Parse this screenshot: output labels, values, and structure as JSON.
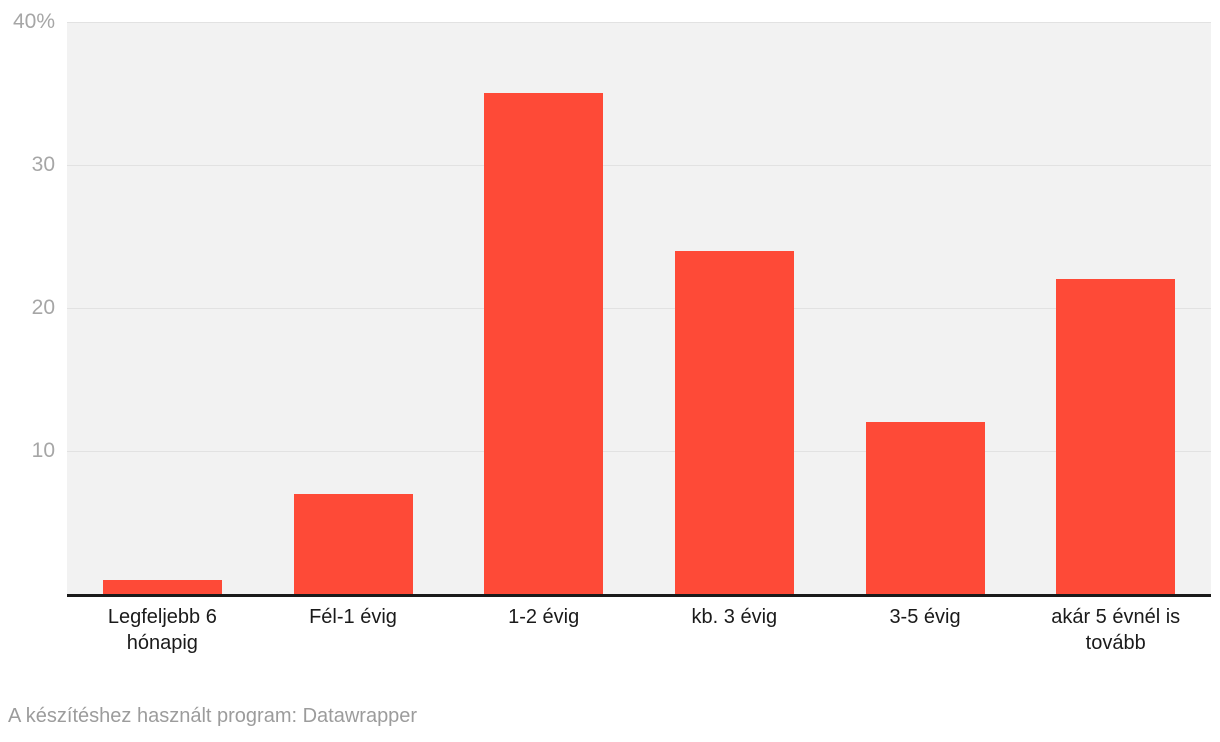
{
  "chart_data": {
    "type": "bar",
    "categories": [
      "Legfeljebb 6 hónapig",
      "Fél-1 évig",
      "1-2 évig",
      "kb. 3 évig",
      "3-5 évig",
      "akár 5 évnél is tovább"
    ],
    "values": [
      1,
      7,
      35,
      24,
      12,
      22
    ],
    "title": "",
    "xlabel": "",
    "ylabel": "",
    "ylim": [
      0,
      40
    ],
    "yticks": [
      {
        "value": 40,
        "label": "40%"
      },
      {
        "value": 30,
        "label": "30"
      },
      {
        "value": 20,
        "label": "20"
      },
      {
        "value": 10,
        "label": "10"
      }
    ],
    "grid": true,
    "legend_position": "none",
    "bar_color": "#fe4a37"
  },
  "colors": {
    "bar": "#fe4a37",
    "plot_background": "#f2f2f2",
    "gridline": "#e2e2e2",
    "axis_line": "#1a1a1a",
    "ytick_label": "#a6a6a6",
    "xtick_label": "#1a1a1a",
    "footer_text": "#9c9c9c",
    "page_background": "#ffffff"
  },
  "footer": {
    "text": "A készítéshez használt program: Datawrapper"
  }
}
